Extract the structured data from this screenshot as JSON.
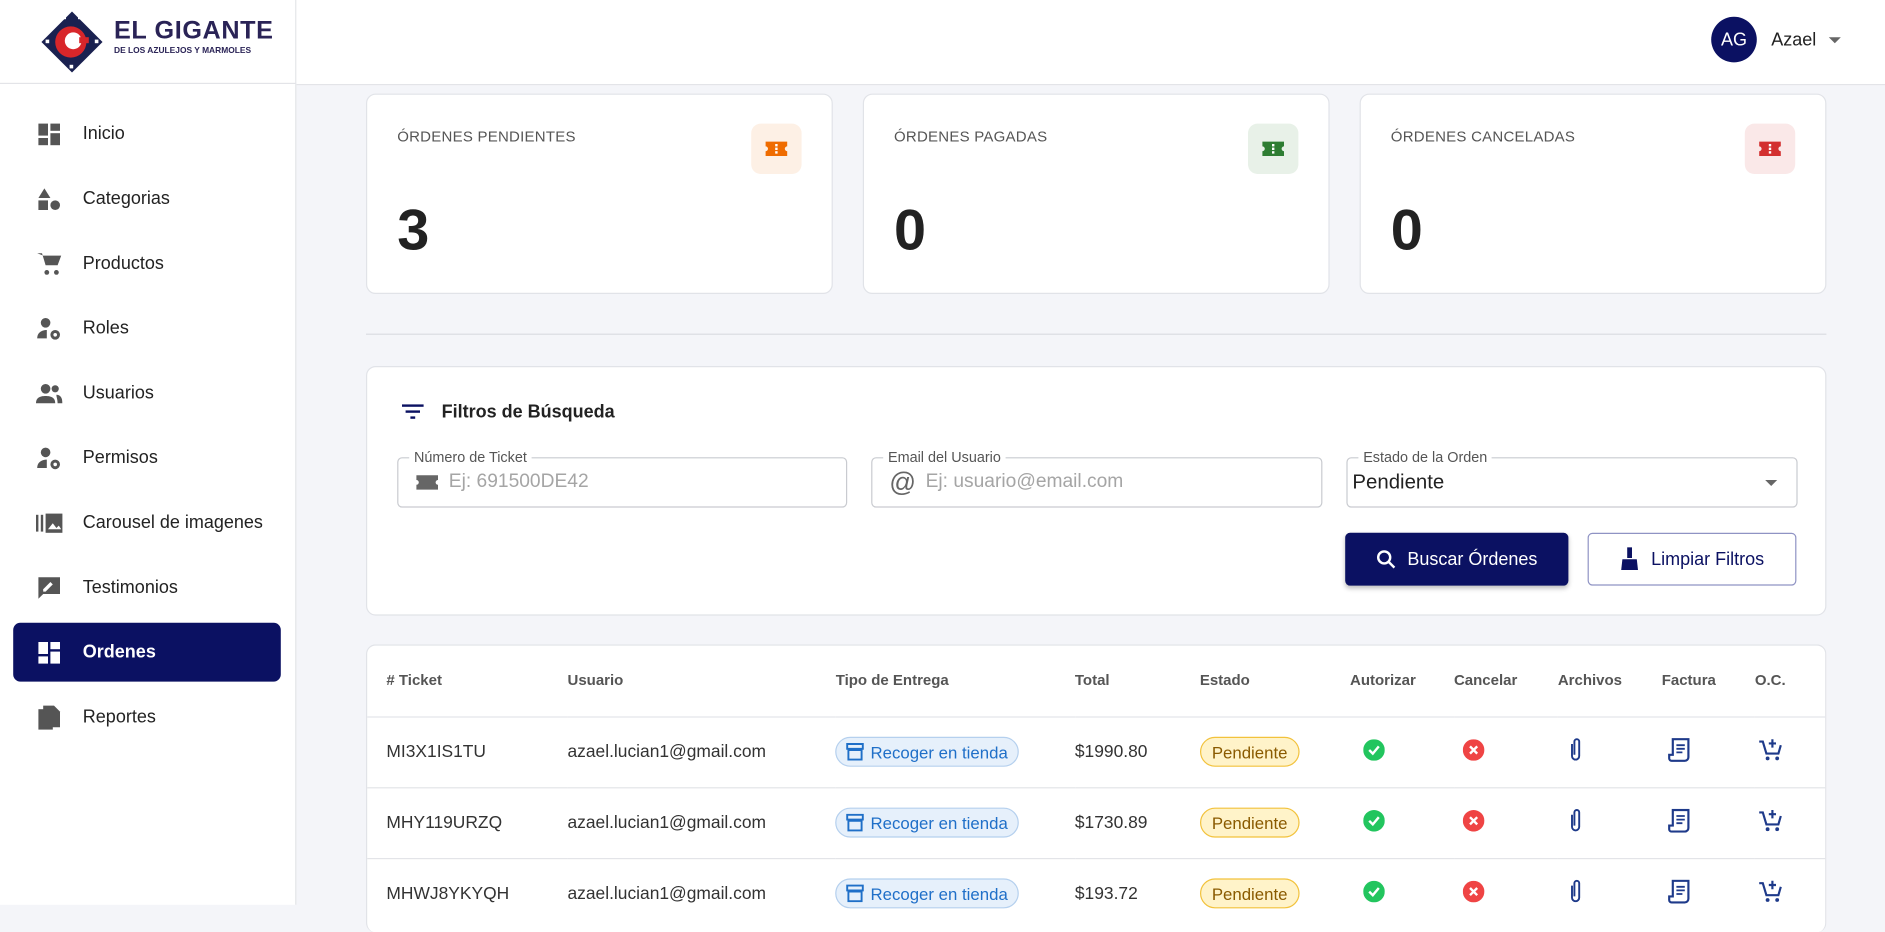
{
  "brand": {
    "name": "EL GIGANTE",
    "tagline": "DE LOS AZULEJOS Y MARMOLES"
  },
  "user": {
    "initials": "AG",
    "name": "Azael"
  },
  "sidebar": {
    "items": [
      {
        "label": "Inicio",
        "icon": "dashboard-icon"
      },
      {
        "label": "Categorias",
        "icon": "category-icon"
      },
      {
        "label": "Productos",
        "icon": "cart-icon"
      },
      {
        "label": "Roles",
        "icon": "user-gear-icon"
      },
      {
        "label": "Usuarios",
        "icon": "users-icon"
      },
      {
        "label": "Permisos",
        "icon": "user-gear-icon"
      },
      {
        "label": "Carousel de imagenes",
        "icon": "image-library-icon"
      },
      {
        "label": "Testimonios",
        "icon": "feedback-icon"
      },
      {
        "label": "Ordenes",
        "icon": "dashboard-icon",
        "active": true
      },
      {
        "label": "Reportes",
        "icon": "file-copy-icon"
      }
    ]
  },
  "stats": [
    {
      "label": "ÓRDENES PENDIENTES",
      "value": "3",
      "color": "#ef6c00",
      "bg": "#fdf0e5"
    },
    {
      "label": "ÓRDENES PAGADAS",
      "value": "0",
      "color": "#2e7d32",
      "bg": "#e8f1e8"
    },
    {
      "label": "ÓRDENES CANCELADAS",
      "value": "0",
      "color": "#d32f2f",
      "bg": "#fae8e8"
    }
  ],
  "filters": {
    "title": "Filtros de Búsqueda",
    "ticket": {
      "label": "Número de Ticket",
      "placeholder": "Ej: 691500DE42",
      "value": ""
    },
    "email": {
      "label": "Email del Usuario",
      "placeholder": "Ej: usuario@email.com",
      "value": ""
    },
    "status": {
      "label": "Estado de la Orden",
      "value": "Pendiente"
    },
    "search_label": "Buscar Órdenes",
    "clear_label": "Limpiar Filtros"
  },
  "table": {
    "headers": [
      "# Ticket",
      "Usuario",
      "Tipo de Entrega",
      "Total",
      "Estado",
      "Autorizar",
      "Cancelar",
      "Archivos",
      "Factura",
      "O.C."
    ],
    "rows": [
      {
        "ticket": "MI3X1IS1TU",
        "user": "azael.lucian1@gmail.com",
        "delivery": "Recoger en tienda",
        "total": "$1990.80",
        "status": "Pendiente"
      },
      {
        "ticket": "MHY119URZQ",
        "user": "azael.lucian1@gmail.com",
        "delivery": "Recoger en tienda",
        "total": "$1730.89",
        "status": "Pendiente"
      },
      {
        "ticket": "MHWJ8YKYQH",
        "user": "azael.lucian1@gmail.com",
        "delivery": "Recoger en tienda",
        "total": "$193.72",
        "status": "Pendiente"
      }
    ]
  },
  "colors": {
    "primary": "#0b1162",
    "success": "#22c55e",
    "danger": "#ef4444"
  }
}
